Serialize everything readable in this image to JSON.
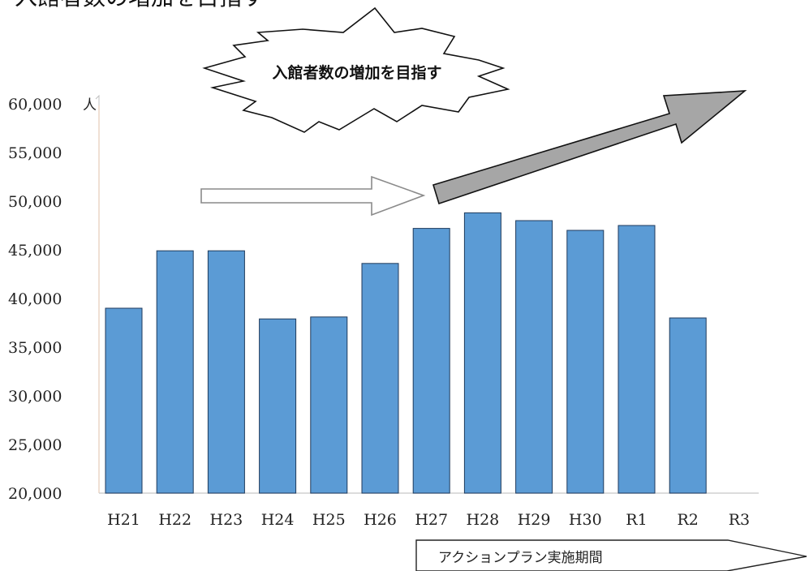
{
  "cut_title": "入館者数の増加を目指す",
  "annotations": {
    "burst_text": "入館者数の増加を目指す",
    "period_text": "アクションプラン実施期間"
  },
  "chart_data": {
    "type": "bar",
    "categories": [
      "H21",
      "H22",
      "H23",
      "H24",
      "H25",
      "H26",
      "H27",
      "H28",
      "H29",
      "H30",
      "R1",
      "R2",
      "R3"
    ],
    "values": [
      39000,
      44900,
      44900,
      37900,
      38100,
      43600,
      47200,
      48800,
      48000,
      47000,
      47500,
      38000,
      null
    ],
    "ylim": [
      20000,
      60000
    ],
    "yticks": [
      20000,
      25000,
      30000,
      35000,
      40000,
      45000,
      50000,
      55000,
      60000
    ],
    "ytick_labels": [
      "20,000",
      "25,000",
      "30,000",
      "35,000",
      "40,000",
      "45,000",
      "50,000",
      "55,000",
      "60,000"
    ],
    "y_unit": "人",
    "title": "",
    "xlabel": "",
    "ylabel": "",
    "bar_color": "#5b9bd5",
    "bar_edge_color": "#1f3a5c",
    "grid": false
  }
}
